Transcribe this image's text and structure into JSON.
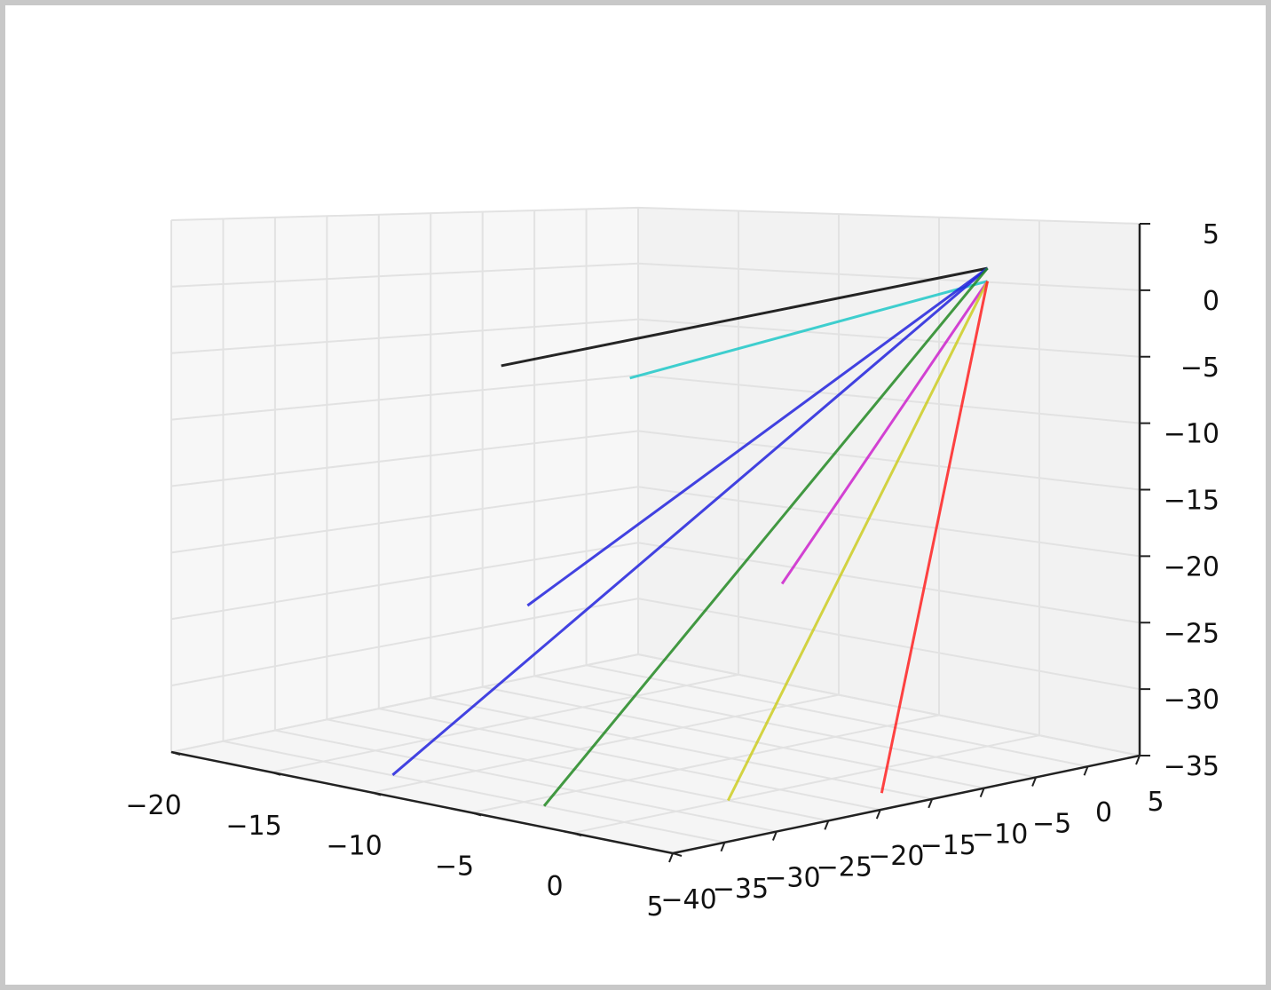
{
  "chart_data": {
    "type": "line",
    "projection": "3d",
    "title": "",
    "xlabel": "",
    "ylabel": "",
    "zlabel": "",
    "xlim": [
      -20,
      5
    ],
    "ylim": [
      -40,
      5
    ],
    "zlim": [
      -35,
      5
    ],
    "grid": true,
    "x_ticks": [
      "−20",
      "−15",
      "−10",
      "−5",
      "0",
      "5"
    ],
    "y_ticks": [
      "−40",
      "−35",
      "−30",
      "−25",
      "−20",
      "−15",
      "−10",
      "−5",
      "0",
      "5"
    ],
    "z_ticks": [
      "5",
      "0",
      "−5",
      "−10",
      "−15",
      "−20",
      "−25",
      "−30",
      "−35"
    ],
    "series": [
      {
        "color": "#000000",
        "points": [
          [
            0,
            0,
            2
          ],
          [
            -17,
            -14,
            -7
          ]
        ]
      },
      {
        "color": "#1ec8c8",
        "points": [
          [
            0,
            0,
            1
          ],
          [
            -8,
            -19,
            -5.5
          ]
        ]
      },
      {
        "color": "#2222dd",
        "points": [
          [
            0,
            0,
            2
          ],
          [
            -10,
            -25,
            -23
          ]
        ]
      },
      {
        "color": "#2222dd",
        "points": [
          [
            0,
            0,
            2
          ],
          [
            -10,
            -38,
            -34
          ]
        ]
      },
      {
        "color": "#cc22cc",
        "points": [
          [
            0,
            0,
            1
          ],
          [
            -3,
            -14,
            -21
          ]
        ]
      },
      {
        "color": "#228822",
        "points": [
          [
            0,
            0,
            2
          ],
          [
            -4,
            -35,
            -35
          ]
        ]
      },
      {
        "color": "#cccc22",
        "points": [
          [
            0,
            0,
            1
          ],
          [
            0,
            -25,
            -35
          ]
        ]
      },
      {
        "color": "#ff2222",
        "points": [
          [
            0,
            0,
            1
          ],
          [
            3,
            -16,
            -35
          ]
        ]
      }
    ]
  }
}
